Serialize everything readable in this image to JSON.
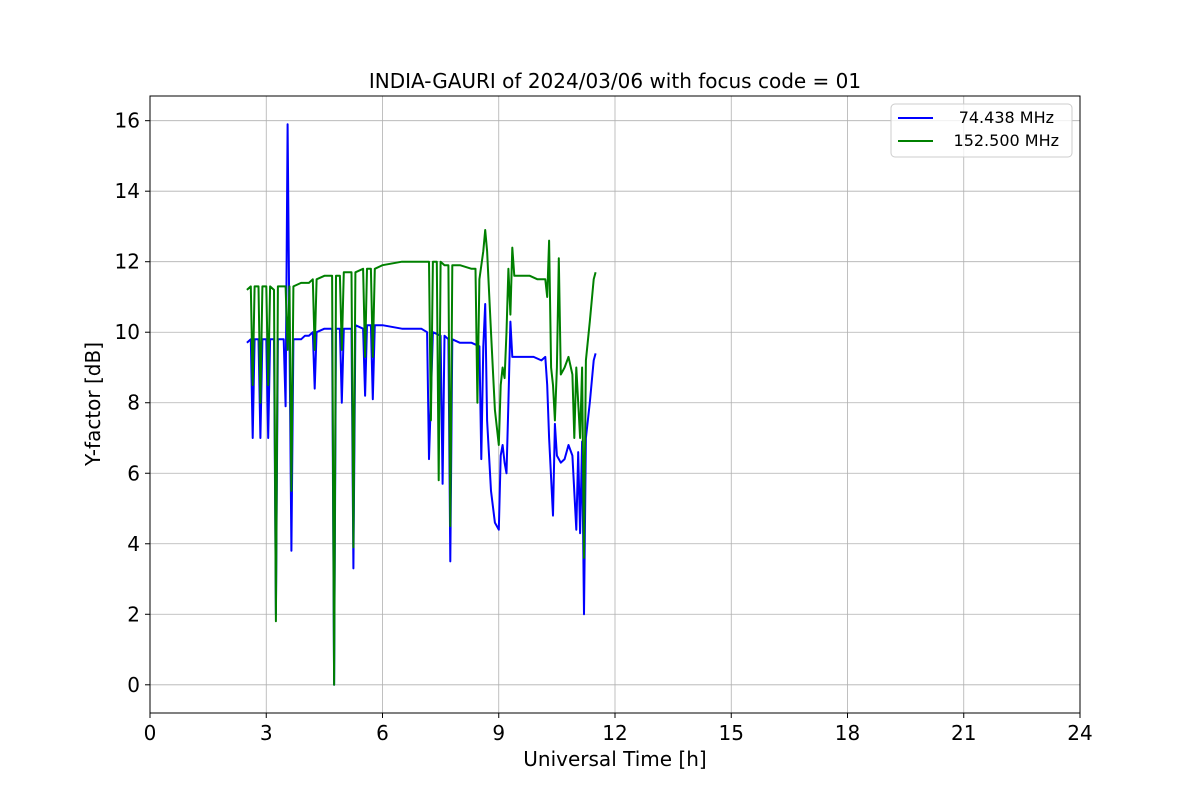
{
  "chart_data": {
    "type": "line",
    "title": "INDIA-GAURI of 2024/03/06 with focus code = 01",
    "xlabel": "Universal Time [h]",
    "ylabel": "Y-factor [dB]",
    "xlim": [
      0,
      24
    ],
    "ylim": [
      -0.8,
      16.7
    ],
    "xticks": [
      0,
      3,
      6,
      9,
      12,
      15,
      18,
      21,
      24
    ],
    "yticks": [
      0,
      2,
      4,
      6,
      8,
      10,
      12,
      14,
      16
    ],
    "grid": true,
    "legend_position": "top-right",
    "series": [
      {
        "name": "74.438 MHz",
        "color": "#0000ff",
        "points": [
          [
            2.5,
            9.7
          ],
          [
            2.6,
            9.8
          ],
          [
            2.65,
            7.0
          ],
          [
            2.7,
            9.8
          ],
          [
            2.8,
            9.8
          ],
          [
            2.85,
            7.0
          ],
          [
            2.9,
            9.8
          ],
          [
            3.0,
            9.8
          ],
          [
            3.05,
            7.0
          ],
          [
            3.1,
            9.8
          ],
          [
            3.2,
            9.8
          ],
          [
            3.25,
            2.0
          ],
          [
            3.3,
            9.8
          ],
          [
            3.45,
            9.8
          ],
          [
            3.5,
            7.9
          ],
          [
            3.55,
            15.9
          ],
          [
            3.6,
            9.8
          ],
          [
            3.65,
            3.8
          ],
          [
            3.7,
            9.8
          ],
          [
            3.9,
            9.8
          ],
          [
            4.0,
            9.9
          ],
          [
            4.1,
            9.9
          ],
          [
            4.2,
            10.0
          ],
          [
            4.25,
            8.4
          ],
          [
            4.3,
            10.0
          ],
          [
            4.5,
            10.1
          ],
          [
            4.7,
            10.1
          ],
          [
            4.75,
            0.0
          ],
          [
            4.8,
            10.1
          ],
          [
            4.9,
            10.1
          ],
          [
            4.95,
            8.0
          ],
          [
            5.0,
            10.1
          ],
          [
            5.2,
            10.1
          ],
          [
            5.25,
            3.3
          ],
          [
            5.3,
            10.2
          ],
          [
            5.5,
            10.1
          ],
          [
            5.55,
            8.2
          ],
          [
            5.6,
            10.2
          ],
          [
            5.7,
            10.2
          ],
          [
            5.75,
            8.1
          ],
          [
            5.8,
            10.2
          ],
          [
            6.0,
            10.2
          ],
          [
            6.5,
            10.1
          ],
          [
            7.0,
            10.1
          ],
          [
            7.15,
            10.0
          ],
          [
            7.2,
            6.4
          ],
          [
            7.3,
            10.0
          ],
          [
            7.5,
            9.9
          ],
          [
            7.55,
            5.7
          ],
          [
            7.6,
            9.9
          ],
          [
            7.7,
            9.8
          ],
          [
            7.75,
            3.5
          ],
          [
            7.8,
            9.8
          ],
          [
            8.0,
            9.7
          ],
          [
            8.3,
            9.7
          ],
          [
            8.5,
            9.6
          ],
          [
            8.55,
            6.4
          ],
          [
            8.6,
            9.6
          ],
          [
            8.65,
            10.8
          ],
          [
            8.7,
            7.5
          ],
          [
            8.8,
            5.5
          ],
          [
            8.9,
            4.6
          ],
          [
            9.0,
            4.4
          ],
          [
            9.05,
            6.5
          ],
          [
            9.1,
            6.8
          ],
          [
            9.15,
            6.3
          ],
          [
            9.2,
            6.0
          ],
          [
            9.25,
            8.0
          ],
          [
            9.3,
            10.3
          ],
          [
            9.35,
            9.3
          ],
          [
            9.5,
            9.3
          ],
          [
            9.7,
            9.3
          ],
          [
            9.9,
            9.3
          ],
          [
            10.1,
            9.2
          ],
          [
            10.2,
            9.3
          ],
          [
            10.25,
            8.5
          ],
          [
            10.3,
            7.0
          ],
          [
            10.4,
            4.8
          ],
          [
            10.45,
            7.4
          ],
          [
            10.5,
            6.5
          ],
          [
            10.6,
            6.3
          ],
          [
            10.7,
            6.4
          ],
          [
            10.8,
            6.8
          ],
          [
            10.9,
            6.5
          ],
          [
            11.0,
            4.4
          ],
          [
            11.05,
            6.6
          ],
          [
            11.1,
            4.3
          ],
          [
            11.15,
            6.9
          ],
          [
            11.2,
            2.0
          ],
          [
            11.25,
            7.0
          ],
          [
            11.35,
            8.0
          ],
          [
            11.45,
            9.2
          ],
          [
            11.5,
            9.4
          ]
        ]
      },
      {
        "name": "152.500 MHz",
        "color": "#008000",
        "points": [
          [
            2.5,
            11.2
          ],
          [
            2.6,
            11.3
          ],
          [
            2.65,
            8.5
          ],
          [
            2.7,
            11.3
          ],
          [
            2.8,
            11.3
          ],
          [
            2.85,
            8.0
          ],
          [
            2.9,
            11.3
          ],
          [
            3.0,
            11.3
          ],
          [
            3.05,
            8.5
          ],
          [
            3.1,
            11.3
          ],
          [
            3.2,
            11.2
          ],
          [
            3.25,
            1.8
          ],
          [
            3.3,
            11.3
          ],
          [
            3.5,
            11.3
          ],
          [
            3.55,
            9.5
          ],
          [
            3.6,
            11.3
          ],
          [
            3.65,
            5.5
          ],
          [
            3.7,
            11.3
          ],
          [
            3.9,
            11.4
          ],
          [
            4.1,
            11.4
          ],
          [
            4.2,
            11.5
          ],
          [
            4.25,
            9.5
          ],
          [
            4.3,
            11.5
          ],
          [
            4.5,
            11.6
          ],
          [
            4.7,
            11.6
          ],
          [
            4.75,
            0.0
          ],
          [
            4.8,
            11.6
          ],
          [
            4.9,
            11.6
          ],
          [
            4.95,
            9.5
          ],
          [
            5.0,
            11.7
          ],
          [
            5.2,
            11.7
          ],
          [
            5.25,
            3.9
          ],
          [
            5.3,
            11.7
          ],
          [
            5.5,
            11.8
          ],
          [
            5.55,
            9.3
          ],
          [
            5.6,
            11.8
          ],
          [
            5.7,
            11.8
          ],
          [
            5.75,
            9.3
          ],
          [
            5.8,
            11.8
          ],
          [
            6.0,
            11.9
          ],
          [
            6.5,
            12.0
          ],
          [
            7.0,
            12.0
          ],
          [
            7.2,
            12.0
          ],
          [
            7.25,
            7.5
          ],
          [
            7.3,
            12.0
          ],
          [
            7.4,
            12.0
          ],
          [
            7.45,
            5.8
          ],
          [
            7.5,
            12.0
          ],
          [
            7.6,
            11.9
          ],
          [
            7.7,
            11.9
          ],
          [
            7.75,
            4.5
          ],
          [
            7.8,
            11.9
          ],
          [
            8.0,
            11.9
          ],
          [
            8.3,
            11.8
          ],
          [
            8.4,
            11.8
          ],
          [
            8.45,
            8.0
          ],
          [
            8.5,
            11.5
          ],
          [
            8.6,
            12.3
          ],
          [
            8.65,
            12.9
          ],
          [
            8.7,
            12.3
          ],
          [
            8.8,
            10.0
          ],
          [
            8.9,
            7.8
          ],
          [
            9.0,
            6.8
          ],
          [
            9.05,
            8.5
          ],
          [
            9.1,
            9.0
          ],
          [
            9.15,
            8.7
          ],
          [
            9.2,
            10.0
          ],
          [
            9.25,
            11.8
          ],
          [
            9.3,
            10.5
          ],
          [
            9.35,
            12.4
          ],
          [
            9.4,
            11.6
          ],
          [
            9.6,
            11.6
          ],
          [
            9.8,
            11.6
          ],
          [
            10.0,
            11.5
          ],
          [
            10.2,
            11.5
          ],
          [
            10.25,
            11.0
          ],
          [
            10.3,
            12.6
          ],
          [
            10.35,
            9.0
          ],
          [
            10.4,
            8.5
          ],
          [
            10.45,
            7.5
          ],
          [
            10.5,
            9.0
          ],
          [
            10.55,
            12.1
          ],
          [
            10.6,
            8.8
          ],
          [
            10.7,
            9.0
          ],
          [
            10.8,
            9.3
          ],
          [
            10.9,
            8.8
          ],
          [
            10.95,
            7.0
          ],
          [
            11.0,
            9.0
          ],
          [
            11.1,
            7.0
          ],
          [
            11.15,
            9.0
          ],
          [
            11.2,
            3.6
          ],
          [
            11.25,
            9.2
          ],
          [
            11.35,
            10.3
          ],
          [
            11.45,
            11.5
          ],
          [
            11.5,
            11.7
          ]
        ]
      }
    ]
  }
}
